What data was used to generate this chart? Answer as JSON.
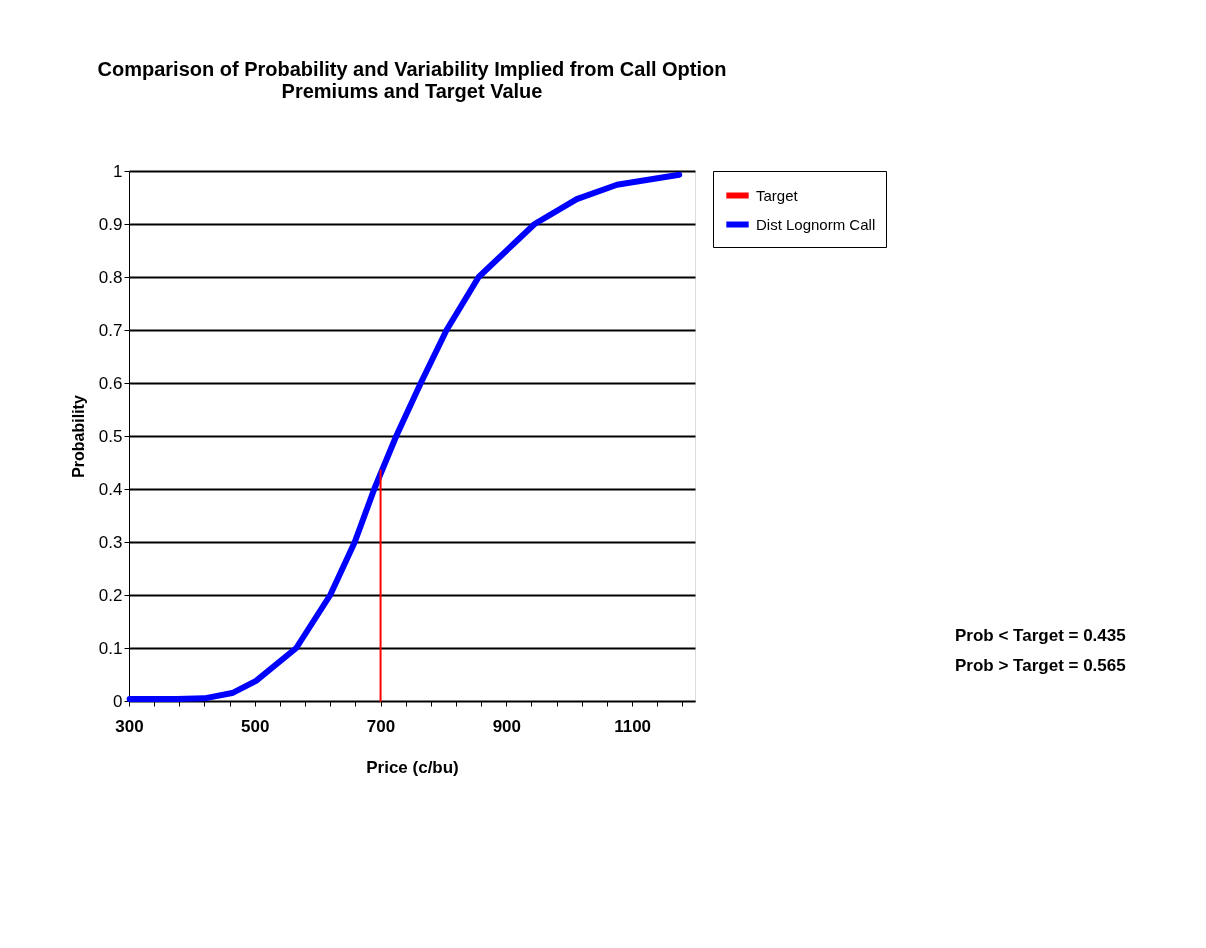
{
  "chart_data": {
    "type": "line",
    "title": "Comparison of Probability and Variability Implied from Call Option Premiums and Target Value",
    "xlabel": "Price (c/bu)",
    "ylabel": "Probability",
    "series": [
      {
        "name": "Target",
        "color": "#ff0000",
        "x": [
          700,
          700
        ],
        "values": [
          0,
          0.435
        ]
      },
      {
        "name": "Dist Lognorm Call",
        "color": "#0000ff",
        "x": [
          301,
          375,
          420,
          464,
          502,
          566,
          620,
          659,
          690,
          725,
          764,
          805,
          856,
          945,
          1012,
          1076,
          1175
        ],
        "values": [
          0.004,
          0.004,
          0.005,
          0.015,
          0.038,
          0.1,
          0.2,
          0.3,
          0.4,
          0.5,
          0.6,
          0.7,
          0.8,
          0.9,
          0.947,
          0.974,
          0.993
        ]
      }
    ],
    "xlim": [
      300,
      1200
    ],
    "xticks": [
      300,
      {
        "value": 340,
        "label": null
      },
      {
        "value": 380,
        "label": null
      },
      {
        "value": 420,
        "label": null
      },
      {
        "value": 460,
        "label": null
      },
      500,
      {
        "value": 540,
        "label": null
      },
      {
        "value": 580,
        "label": null
      },
      {
        "value": 620,
        "label": null
      },
      {
        "value": 660,
        "label": null
      },
      700,
      {
        "value": 740,
        "label": null
      },
      {
        "value": 780,
        "label": null
      },
      {
        "value": 820,
        "label": null
      },
      {
        "value": 860,
        "label": null
      },
      900,
      {
        "value": 940,
        "label": null
      },
      {
        "value": 980,
        "label": null
      },
      {
        "value": 1020,
        "label": null
      },
      {
        "value": 1060,
        "label": null
      },
      1100,
      {
        "value": 1140,
        "label": null
      },
      {
        "value": 1180,
        "label": null
      }
    ],
    "ylim": [
      0,
      1
    ],
    "yticks": [
      0,
      0.1,
      0.2,
      0.3,
      0.4,
      0.5,
      0.6,
      0.7,
      0.8,
      0.9,
      1
    ],
    "grid": "y",
    "legend": "right",
    "marker": "none",
    "line_style": "solid",
    "annotations": [
      "Prob < Target = 0.435",
      "Prob > Target = 0.565"
    ]
  }
}
